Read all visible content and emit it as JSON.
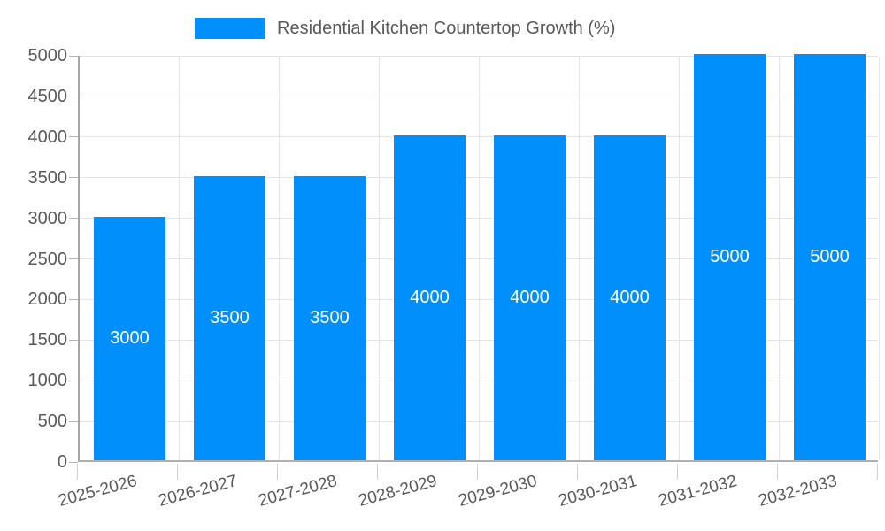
{
  "chart_data": {
    "type": "bar",
    "title": "Residential Kitchen Countertop Growth (%)",
    "categories": [
      "2025-2026",
      "2026-2027",
      "2027-2028",
      "2028-2029",
      "2029-2030",
      "2030-2031",
      "2031-2032",
      "2032-2033"
    ],
    "values": [
      3000,
      3500,
      3500,
      4000,
      4000,
      4000,
      5000,
      5000
    ],
    "data_labels": [
      "3000",
      "3500",
      "3500",
      "4000",
      "4000",
      "4000",
      "5000",
      "5000"
    ],
    "xlabel": "",
    "ylabel": "",
    "ylim": [
      0,
      5000
    ],
    "y_ticks": [
      0,
      500,
      1000,
      1500,
      2000,
      2500,
      3000,
      3500,
      4000,
      4500,
      5000
    ],
    "grid": true,
    "legend_position": "top",
    "colors": {
      "bar": "#008FFB",
      "bar_value_text": "#ffffff",
      "axis_text": "#595959",
      "gridline": "#e4e4e4",
      "axis_line": "#a6a6a6"
    }
  }
}
